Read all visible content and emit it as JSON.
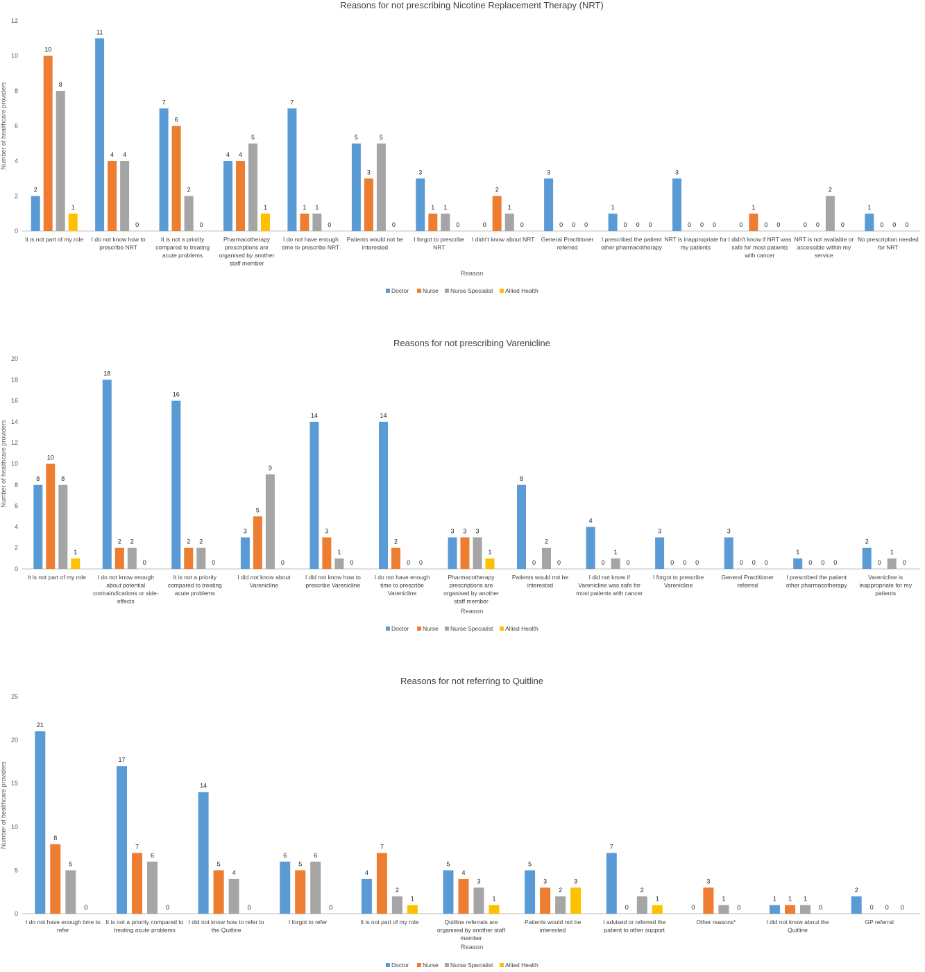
{
  "colors": {
    "doctor": "#5B9BD5",
    "nurse": "#ED7D31",
    "nurse_specialist": "#A5A5A5",
    "allied_health": "#FFC000",
    "axis": "#BFBFBF",
    "gridline": "none"
  },
  "chart_data": [
    {
      "type": "bar",
      "title": "Reasons for not prescribing Nicotine Replacement Therapy (NRT)",
      "xlabel": "Reason",
      "ylabel": "Number of healthcare providers",
      "ylim": [
        0,
        12
      ],
      "yticks": [
        "0",
        "2",
        "4",
        "6",
        "8",
        "10",
        "12"
      ],
      "grid": false,
      "legend_position": "bottom",
      "categories": [
        [
          "It is not part of my role"
        ],
        [
          "I do not know how to",
          "prescribe NRT"
        ],
        [
          "It is not a priority",
          "compared to treating",
          "acute problems"
        ],
        [
          "Pharmacotherapy",
          "prescriptions are",
          "organised by another",
          "staff member"
        ],
        [
          "I do not have enough",
          "time to prescribe NRT"
        ],
        [
          "Patients would not be",
          "interested"
        ],
        [
          "I forgot to prescribe",
          "NRT"
        ],
        [
          "I didn't know about NRT"
        ],
        [
          "General Practitioner",
          "referred"
        ],
        [
          "I prescribed the patient",
          "other pharmacotherapy"
        ],
        [
          "NRT is inappropriate for",
          "my patients"
        ],
        [
          "I didn't know if NRT was",
          "safe for most patients",
          "with cancer"
        ],
        [
          "NRT is not available or",
          "accessible within my",
          "service"
        ],
        [
          "No prescription needed",
          "for NRT"
        ]
      ],
      "series": [
        {
          "name": "Doctor",
          "values": [
            2,
            11,
            7,
            4,
            7,
            5,
            3,
            0,
            3,
            1,
            3,
            0,
            0,
            1
          ]
        },
        {
          "name": "Nurse",
          "values": [
            10,
            4,
            6,
            4,
            1,
            3,
            1,
            2,
            0,
            0,
            0,
            1,
            0,
            0
          ]
        },
        {
          "name": "Nurse Specialist",
          "values": [
            8,
            4,
            2,
            5,
            1,
            5,
            1,
            1,
            0,
            0,
            0,
            0,
            2,
            0
          ]
        },
        {
          "name": "Allied Health",
          "values": [
            1,
            0,
            0,
            1,
            0,
            0,
            0,
            0,
            0,
            0,
            0,
            0,
            0,
            0
          ]
        }
      ]
    },
    {
      "type": "bar",
      "title": "Reasons for not prescribing Varenicline",
      "xlabel": "Reason",
      "ylabel": "Number of healthcare providers",
      "ylim": [
        0,
        20
      ],
      "yticks": [
        "0",
        "2",
        "4",
        "6",
        "8",
        "10",
        "12",
        "14",
        "16",
        "18",
        "20"
      ],
      "grid": false,
      "legend_position": "bottom",
      "categories": [
        [
          "It is not part of my role"
        ],
        [
          "I do not know enough",
          "about potential",
          "contraindications or side-",
          "effects"
        ],
        [
          "It is not a priority",
          "compared to treating",
          "acute problems"
        ],
        [
          "I did not know about",
          "Varenicline"
        ],
        [
          "I did not know how to",
          "prescribe Varenicline"
        ],
        [
          "I do not have enough",
          "time to prescribe",
          "Varenicline"
        ],
        [
          "Pharmacotherapy",
          "prescriptions are",
          "organised by another",
          "staff member"
        ],
        [
          "Patients would not be",
          "interested"
        ],
        [
          "I did not know if",
          "Varenicline was safe for",
          "most patients with cancer"
        ],
        [
          "I forgot to prescribe",
          "Varenicline"
        ],
        [
          "General Practitioner",
          "referred"
        ],
        [
          "I prescribed the patient",
          "other pharmacotherapy"
        ],
        [
          "Varenicline is",
          "inappropriate for my",
          "patients"
        ]
      ],
      "series": [
        {
          "name": "Doctor",
          "values": [
            8,
            18,
            16,
            3,
            14,
            14,
            3,
            8,
            4,
            3,
            3,
            1,
            2
          ]
        },
        {
          "name": "Nurse",
          "values": [
            10,
            2,
            2,
            5,
            3,
            2,
            3,
            0,
            0,
            0,
            0,
            0,
            0
          ]
        },
        {
          "name": "Nurse Specialist",
          "values": [
            8,
            2,
            2,
            9,
            1,
            0,
            3,
            2,
            1,
            0,
            0,
            0,
            1
          ]
        },
        {
          "name": "Allied Health",
          "values": [
            1,
            0,
            0,
            0,
            0,
            0,
            1,
            0,
            0,
            0,
            0,
            0,
            0
          ]
        }
      ]
    },
    {
      "type": "bar",
      "title": "Reasons for not referring to Quitline",
      "xlabel": "Reason",
      "ylabel": "Number of healthcare providers",
      "ylim": [
        0,
        25
      ],
      "yticks": [
        "0",
        "5",
        "10",
        "15",
        "20",
        "25"
      ],
      "grid": false,
      "legend_position": "bottom",
      "categories": [
        [
          "I do not have enough time to",
          "refer"
        ],
        [
          "It is not a priority compared to",
          "treating acute problems"
        ],
        [
          "I did not know how to refer to",
          "the Quitline"
        ],
        [
          "I forgot to refer"
        ],
        [
          "It is not part of my role"
        ],
        [
          "Quitline referrals are",
          "organised by another staff",
          "member"
        ],
        [
          "Patients would not be",
          "interested"
        ],
        [
          "I advised or referred the",
          "patient to other support"
        ],
        [
          "Other reasons*"
        ],
        [
          "I did not know about the",
          "Quitline"
        ],
        [
          "GP referral"
        ]
      ],
      "series": [
        {
          "name": "Doctor",
          "values": [
            21,
            17,
            14,
            6,
            4,
            5,
            5,
            7,
            0,
            1,
            2
          ]
        },
        {
          "name": "Nurse",
          "values": [
            8,
            7,
            5,
            5,
            7,
            4,
            3,
            0,
            3,
            1,
            0
          ]
        },
        {
          "name": "Nurse Specialist",
          "values": [
            5,
            6,
            4,
            6,
            2,
            3,
            2,
            2,
            1,
            1,
            0
          ]
        },
        {
          "name": "Allied Health",
          "values": [
            0,
            0,
            0,
            0,
            1,
            1,
            3,
            1,
            0,
            0,
            0
          ]
        }
      ]
    }
  ]
}
